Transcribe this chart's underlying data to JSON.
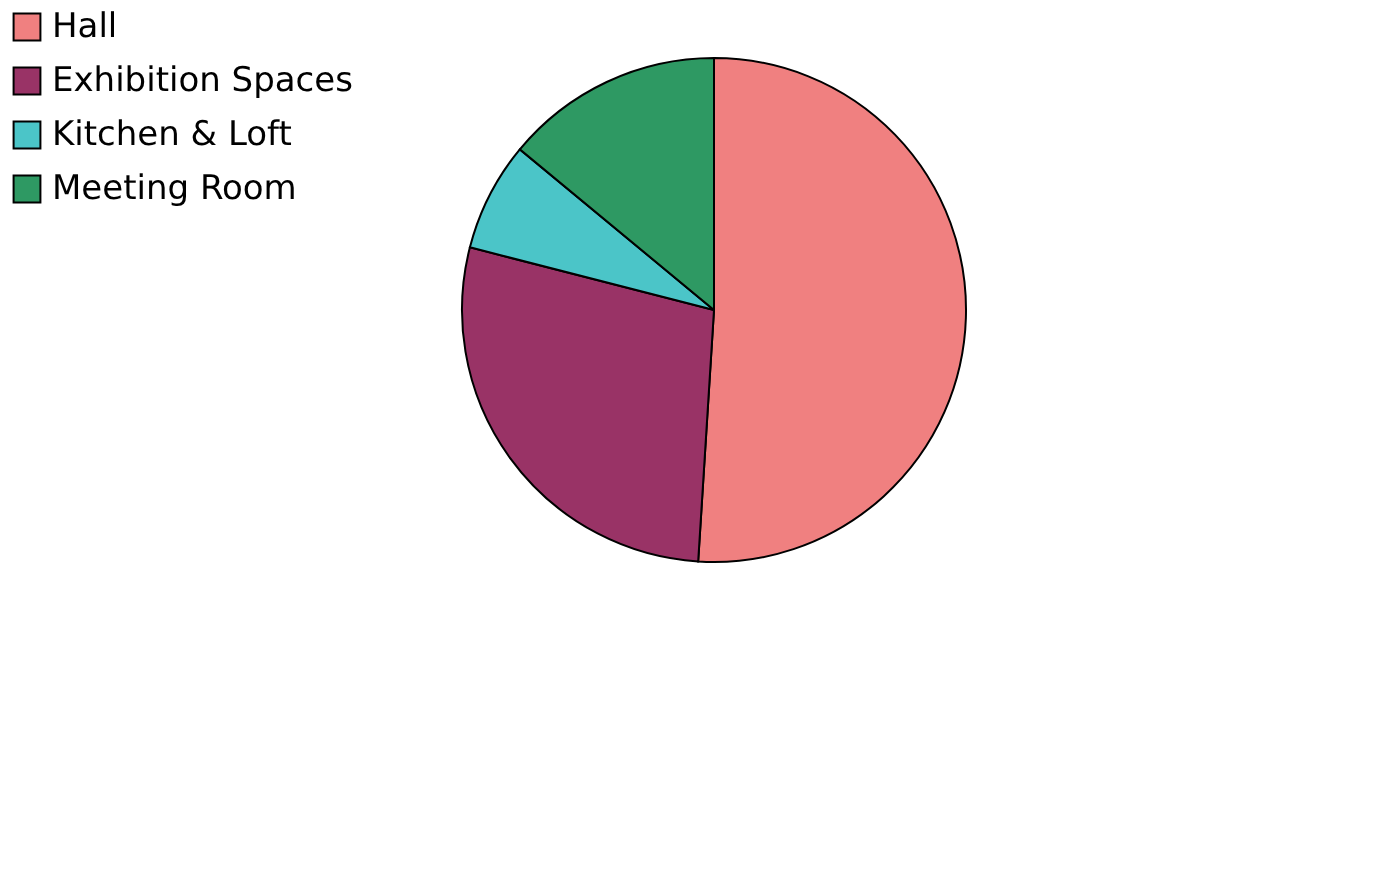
{
  "chart_data": {
    "type": "pie",
    "categories": [
      "Hall",
      "Exhibition Spaces",
      "Kitchen & Loft",
      "Meeting Room"
    ],
    "values": [
      51,
      28,
      7,
      14
    ],
    "colors": [
      "#f08080",
      "#993366",
      "#4bc5c8",
      "#2e9963"
    ],
    "legend": "left"
  }
}
